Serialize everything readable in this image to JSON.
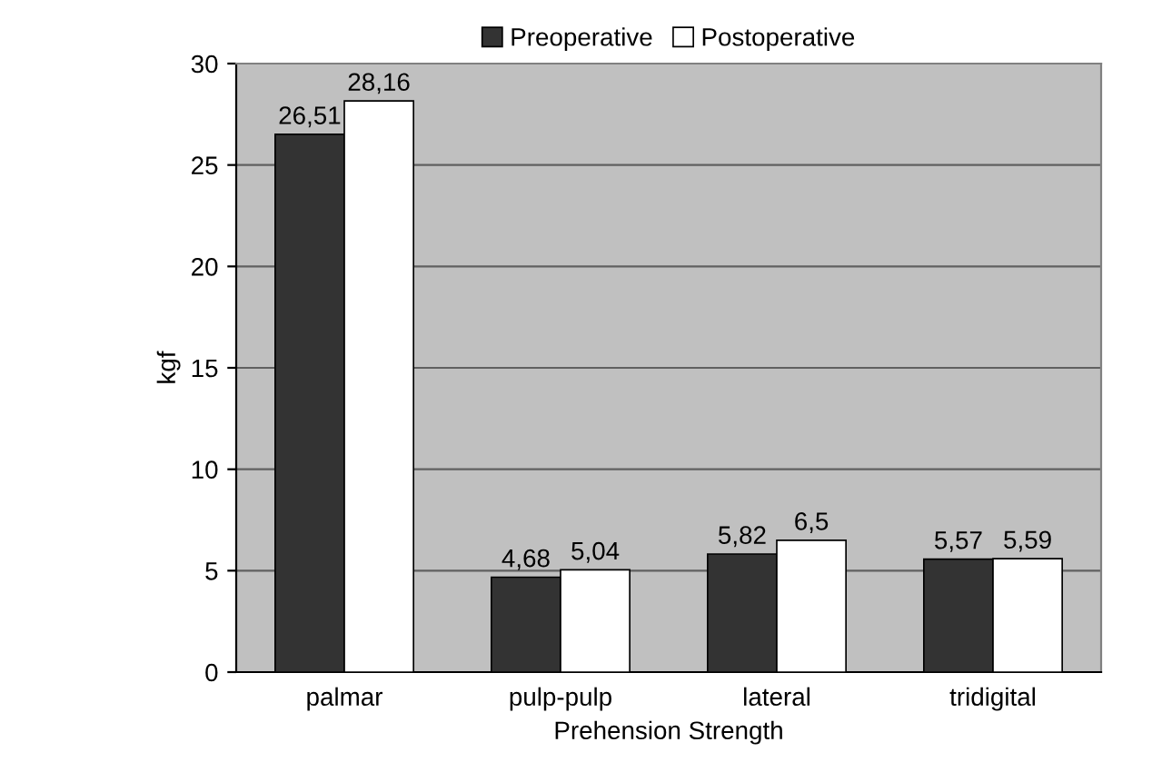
{
  "chart_data": {
    "type": "bar",
    "xlabel": "Prehension Strength",
    "ylabel": "kgf",
    "categories": [
      "palmar",
      "pulp-pulp",
      "lateral",
      "tridigital"
    ],
    "series": [
      {
        "name": "Preoperative",
        "color": "#333333",
        "values": [
          26.51,
          4.68,
          5.82,
          5.57
        ],
        "value_labels": [
          "26,51",
          "4,68",
          "5,82",
          "5,57"
        ]
      },
      {
        "name": "Postoperative",
        "color": "#ffffff",
        "values": [
          28.16,
          5.04,
          6.5,
          5.59
        ],
        "value_labels": [
          "28,16",
          "5,04",
          "6,5",
          "5,59"
        ]
      }
    ],
    "ylim": [
      0,
      30
    ],
    "yticks": [
      0,
      5,
      10,
      15,
      20,
      25,
      30
    ],
    "grid": "y",
    "legend": "top"
  }
}
